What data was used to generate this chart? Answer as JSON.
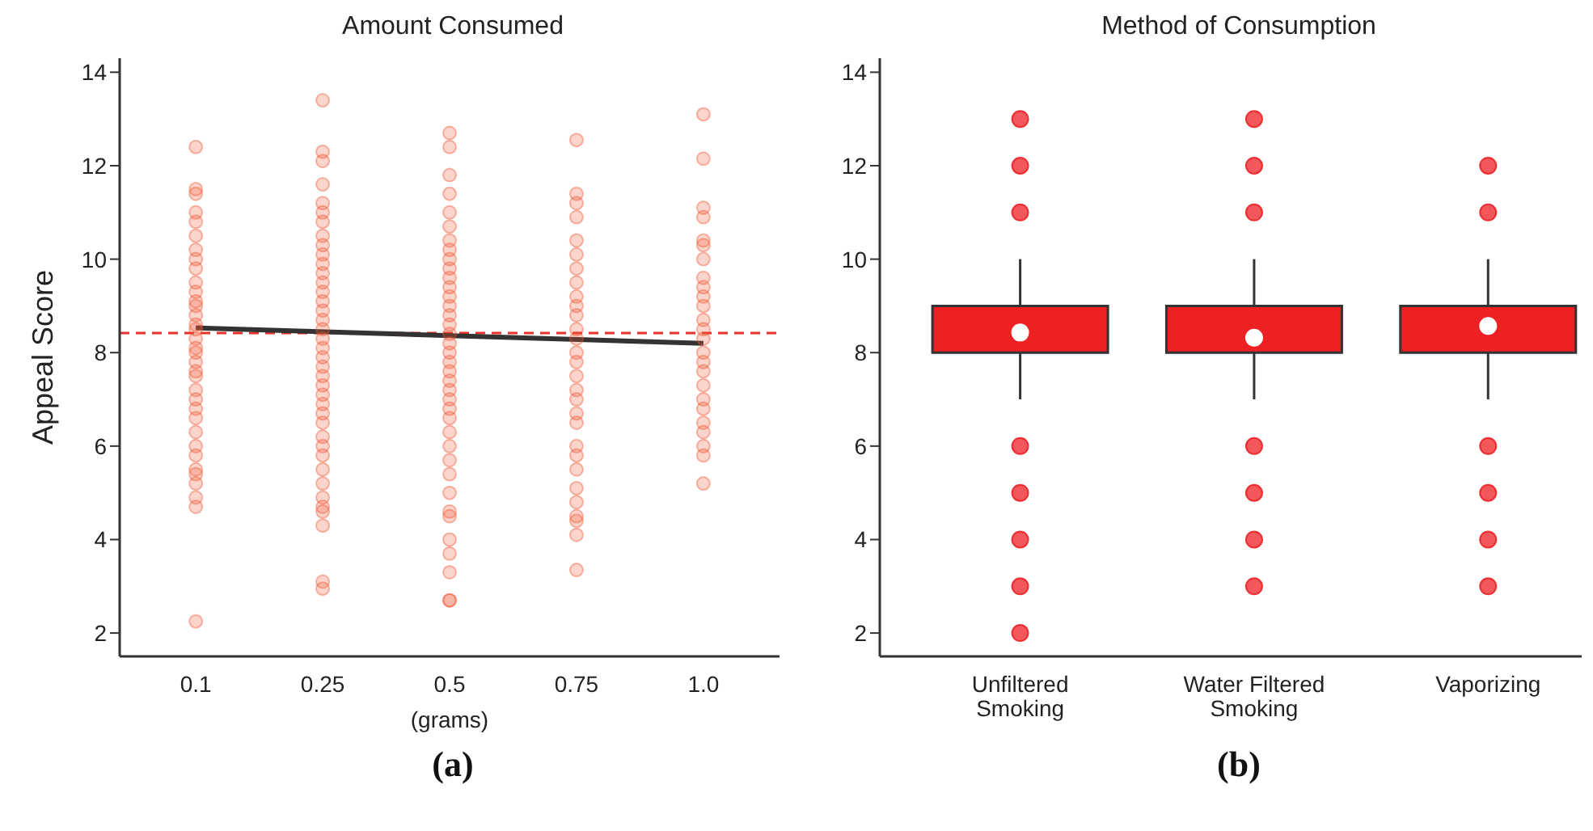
{
  "chart_data": [
    {
      "type": "scatter",
      "title": "Amount Consumed",
      "xlabel": "(grams)",
      "ylabel": "Appeal Score",
      "categories": [
        "0.1",
        "0.25",
        "0.5",
        "0.75",
        "1.0"
      ],
      "ylim": [
        1.5,
        14.3
      ],
      "yticks": [
        2,
        4,
        6,
        8,
        10,
        12,
        14
      ],
      "annotations": [
        "(a)"
      ],
      "ref_lines": [
        {
          "axis": "y",
          "value": 8.42,
          "color": "#e8312a",
          "line_style": "dashed"
        }
      ],
      "series": [
        {
          "type": "scatter",
          "color": "#f0532f",
          "marker": "circle",
          "x": [
            "0.1",
            "0.1",
            "0.1",
            "0.1",
            "0.1",
            "0.1",
            "0.1",
            "0.1",
            "0.1",
            "0.1",
            "0.1",
            "0.1",
            "0.1",
            "0.1",
            "0.1",
            "0.1",
            "0.1",
            "0.1",
            "0.1",
            "0.1",
            "0.1",
            "0.1",
            "0.1",
            "0.1",
            "0.1",
            "0.1",
            "0.1",
            "0.1",
            "0.1",
            "0.1",
            "0.1",
            "0.1",
            "0.1",
            "0.1",
            "0.1",
            "0.25",
            "0.25",
            "0.25",
            "0.25",
            "0.25",
            "0.25",
            "0.25",
            "0.25",
            "0.25",
            "0.25",
            "0.25",
            "0.25",
            "0.25",
            "0.25",
            "0.25",
            "0.25",
            "0.25",
            "0.25",
            "0.25",
            "0.25",
            "0.25",
            "0.25",
            "0.25",
            "0.25",
            "0.25",
            "0.25",
            "0.25",
            "0.25",
            "0.25",
            "0.25",
            "0.25",
            "0.25",
            "0.25",
            "0.25",
            "0.25",
            "0.25",
            "0.25",
            "0.25",
            "0.25",
            "0.5",
            "0.5",
            "0.5",
            "0.5",
            "0.5",
            "0.5",
            "0.5",
            "0.5",
            "0.5",
            "0.5",
            "0.5",
            "0.5",
            "0.5",
            "0.5",
            "0.5",
            "0.5",
            "0.5",
            "0.5",
            "0.5",
            "0.5",
            "0.5",
            "0.5",
            "0.5",
            "0.5",
            "0.5",
            "0.5",
            "0.5",
            "0.5",
            "0.5",
            "0.5",
            "0.5",
            "0.5",
            "0.5",
            "0.5",
            "0.5",
            "0.5",
            "0.5",
            "0.5",
            "0.75",
            "0.75",
            "0.75",
            "0.75",
            "0.75",
            "0.75",
            "0.75",
            "0.75",
            "0.75",
            "0.75",
            "0.75",
            "0.75",
            "0.75",
            "0.75",
            "0.75",
            "0.75",
            "0.75",
            "0.75",
            "0.75",
            "0.75",
            "0.75",
            "0.75",
            "0.75",
            "0.75",
            "0.75",
            "0.75",
            "0.75",
            "0.75",
            "0.75",
            "1.0",
            "1.0",
            "1.0",
            "1.0",
            "1.0",
            "1.0",
            "1.0",
            "1.0",
            "1.0",
            "1.0",
            "1.0",
            "1.0",
            "1.0",
            "1.0",
            "1.0",
            "1.0",
            "1.0",
            "1.0",
            "1.0",
            "1.0",
            "1.0",
            "1.0",
            "1.0",
            "1.0",
            "1.0"
          ],
          "values": [
            12.4,
            11.5,
            11.4,
            11.0,
            10.8,
            10.5,
            10.2,
            10.0,
            9.8,
            9.5,
            9.3,
            9.1,
            9.0,
            8.8,
            8.6,
            8.5,
            8.3,
            8.1,
            8.0,
            7.8,
            7.6,
            7.5,
            7.2,
            7.0,
            6.8,
            6.6,
            6.3,
            6.0,
            5.8,
            5.5,
            5.4,
            5.2,
            4.9,
            4.7,
            2.25,
            13.4,
            12.3,
            12.1,
            11.6,
            11.2,
            11.0,
            10.8,
            10.5,
            10.3,
            10.1,
            9.9,
            9.7,
            9.5,
            9.3,
            9.1,
            8.9,
            8.7,
            8.5,
            8.3,
            8.1,
            7.9,
            7.7,
            7.5,
            7.3,
            7.1,
            6.9,
            6.7,
            6.5,
            6.2,
            6.0,
            5.8,
            5.5,
            5.2,
            4.9,
            4.7,
            4.6,
            4.3,
            3.1,
            2.95,
            12.7,
            12.4,
            11.8,
            11.4,
            11.0,
            10.7,
            10.4,
            10.2,
            10.0,
            9.8,
            9.6,
            9.4,
            9.2,
            9.0,
            8.8,
            8.6,
            8.4,
            8.2,
            8.0,
            7.8,
            7.6,
            7.4,
            7.2,
            7.0,
            6.8,
            6.6,
            6.3,
            6.0,
            5.7,
            5.4,
            5.0,
            4.6,
            4.5,
            4.0,
            3.7,
            3.3,
            2.7,
            2.7,
            12.55,
            11.4,
            11.2,
            10.9,
            10.4,
            10.1,
            9.8,
            9.5,
            9.2,
            9.0,
            8.8,
            8.5,
            8.3,
            8.0,
            7.8,
            7.5,
            7.2,
            7.0,
            6.7,
            6.5,
            6.0,
            5.8,
            5.5,
            5.1,
            4.8,
            4.4,
            4.5,
            4.1,
            3.35,
            13.1,
            12.15,
            11.1,
            10.9,
            10.4,
            10.3,
            10.0,
            9.6,
            9.4,
            9.2,
            9.0,
            8.7,
            8.5,
            8.3,
            8.0,
            7.8,
            7.6,
            7.3,
            7.0,
            6.8,
            6.5,
            6.3,
            6.0,
            5.8,
            5.2
          ]
        },
        {
          "type": "line",
          "color": "#333333",
          "marker": "none",
          "x": [
            "0.1",
            "1.0"
          ],
          "values": [
            8.53,
            8.2
          ]
        }
      ]
    },
    {
      "type": "box",
      "title": "Method of Consumption",
      "categories": [
        "Unfiltered Smoking",
        "Water Filtered Smoking",
        "Vaporizing"
      ],
      "ylim": [
        1.5,
        14.3
      ],
      "yticks": [
        2,
        4,
        6,
        8,
        10,
        12,
        14
      ],
      "annotations": [
        "(b)"
      ],
      "series": [
        {
          "color": "#ed2024",
          "boxes": [
            {
              "low": 7,
              "q1": 8,
              "median": 8,
              "q3": 9,
              "high": 10,
              "mean": 8.43,
              "outliers": [
                13,
                12,
                11,
                6,
                5,
                4,
                3,
                2
              ]
            },
            {
              "low": 7,
              "q1": 8,
              "median": 8,
              "q3": 9,
              "high": 10,
              "mean": 8.32,
              "outliers": [
                13,
                12,
                11,
                6,
                5,
                4,
                3
              ]
            },
            {
              "low": 7,
              "q1": 8,
              "median": 8,
              "q3": 9,
              "high": 10,
              "mean": 8.57,
              "outliers": [
                12,
                11,
                6,
                5,
                4,
                3
              ]
            }
          ]
        }
      ]
    }
  ]
}
